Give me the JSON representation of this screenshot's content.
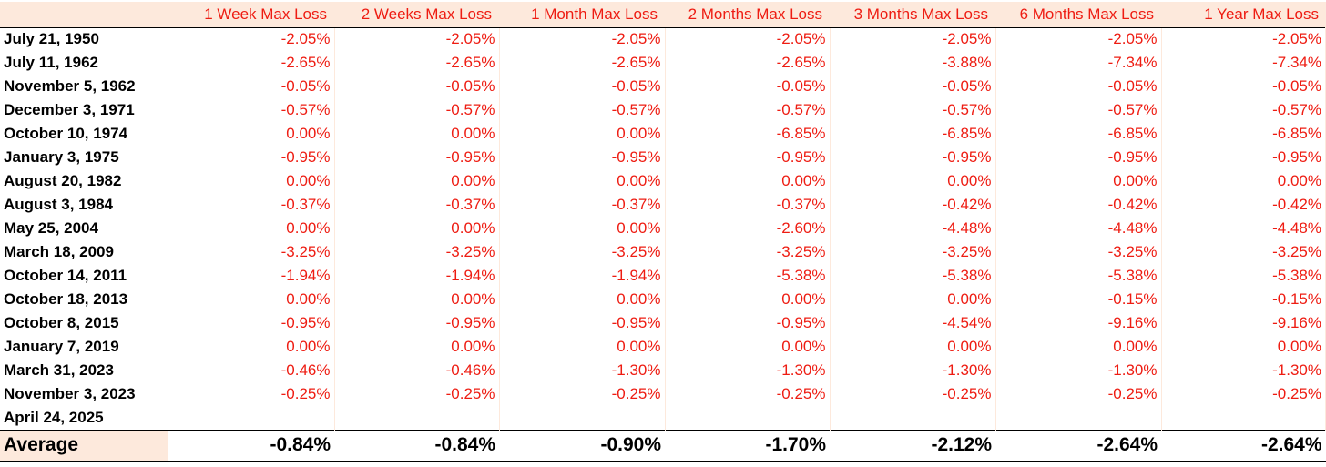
{
  "table": {
    "headers": [
      "1 Week Max Loss",
      "2 Weeks Max Loss",
      "1 Month Max Loss",
      "2 Months Max Loss",
      "3 Months Max Loss",
      "6 Months Max Loss",
      "1 Year Max Loss"
    ],
    "rows": [
      {
        "date": "July 21, 1950",
        "values": [
          "-2.05%",
          "-2.05%",
          "-2.05%",
          "-2.05%",
          "-2.05%",
          "-2.05%",
          "-2.05%"
        ]
      },
      {
        "date": "July 11, 1962",
        "values": [
          "-2.65%",
          "-2.65%",
          "-2.65%",
          "-2.65%",
          "-3.88%",
          "-7.34%",
          "-7.34%"
        ]
      },
      {
        "date": "November 5, 1962",
        "values": [
          "-0.05%",
          "-0.05%",
          "-0.05%",
          "-0.05%",
          "-0.05%",
          "-0.05%",
          "-0.05%"
        ]
      },
      {
        "date": "December 3, 1971",
        "values": [
          "-0.57%",
          "-0.57%",
          "-0.57%",
          "-0.57%",
          "-0.57%",
          "-0.57%",
          "-0.57%"
        ]
      },
      {
        "date": "October 10, 1974",
        "values": [
          "0.00%",
          "0.00%",
          "0.00%",
          "-6.85%",
          "-6.85%",
          "-6.85%",
          "-6.85%"
        ]
      },
      {
        "date": "January 3, 1975",
        "values": [
          "-0.95%",
          "-0.95%",
          "-0.95%",
          "-0.95%",
          "-0.95%",
          "-0.95%",
          "-0.95%"
        ]
      },
      {
        "date": "August 20, 1982",
        "values": [
          "0.00%",
          "0.00%",
          "0.00%",
          "0.00%",
          "0.00%",
          "0.00%",
          "0.00%"
        ]
      },
      {
        "date": "August 3, 1984",
        "values": [
          "-0.37%",
          "-0.37%",
          "-0.37%",
          "-0.37%",
          "-0.42%",
          "-0.42%",
          "-0.42%"
        ]
      },
      {
        "date": "May 25, 2004",
        "values": [
          "0.00%",
          "0.00%",
          "0.00%",
          "-2.60%",
          "-4.48%",
          "-4.48%",
          "-4.48%"
        ]
      },
      {
        "date": "March 18, 2009",
        "values": [
          "-3.25%",
          "-3.25%",
          "-3.25%",
          "-3.25%",
          "-3.25%",
          "-3.25%",
          "-3.25%"
        ]
      },
      {
        "date": "October 14, 2011",
        "values": [
          "-1.94%",
          "-1.94%",
          "-1.94%",
          "-5.38%",
          "-5.38%",
          "-5.38%",
          "-5.38%"
        ]
      },
      {
        "date": "October 18, 2013",
        "values": [
          "0.00%",
          "0.00%",
          "0.00%",
          "0.00%",
          "0.00%",
          "-0.15%",
          "-0.15%"
        ]
      },
      {
        "date": "October 8, 2015",
        "values": [
          "-0.95%",
          "-0.95%",
          "-0.95%",
          "-0.95%",
          "-4.54%",
          "-9.16%",
          "-9.16%"
        ]
      },
      {
        "date": "January 7, 2019",
        "values": [
          "0.00%",
          "0.00%",
          "0.00%",
          "0.00%",
          "0.00%",
          "0.00%",
          "0.00%"
        ]
      },
      {
        "date": "March 31, 2023",
        "values": [
          "-0.46%",
          "-0.46%",
          "-1.30%",
          "-1.30%",
          "-1.30%",
          "-1.30%",
          "-1.30%"
        ]
      },
      {
        "date": "November 3, 2023",
        "values": [
          "-0.25%",
          "-0.25%",
          "-0.25%",
          "-0.25%",
          "-0.25%",
          "-0.25%",
          "-0.25%"
        ]
      },
      {
        "date": "April 24, 2025",
        "values": [
          "",
          "",
          "",
          "",
          "",
          "",
          ""
        ]
      }
    ],
    "average": {
      "label": "Average",
      "values": [
        "-0.84%",
        "-0.84%",
        "-0.90%",
        "-1.70%",
        "-2.12%",
        "-2.64%",
        "-2.64%"
      ]
    }
  },
  "colors": {
    "header_bg": "#fde9dc",
    "value_text": "#ee1c12",
    "label_text": "#000000"
  }
}
